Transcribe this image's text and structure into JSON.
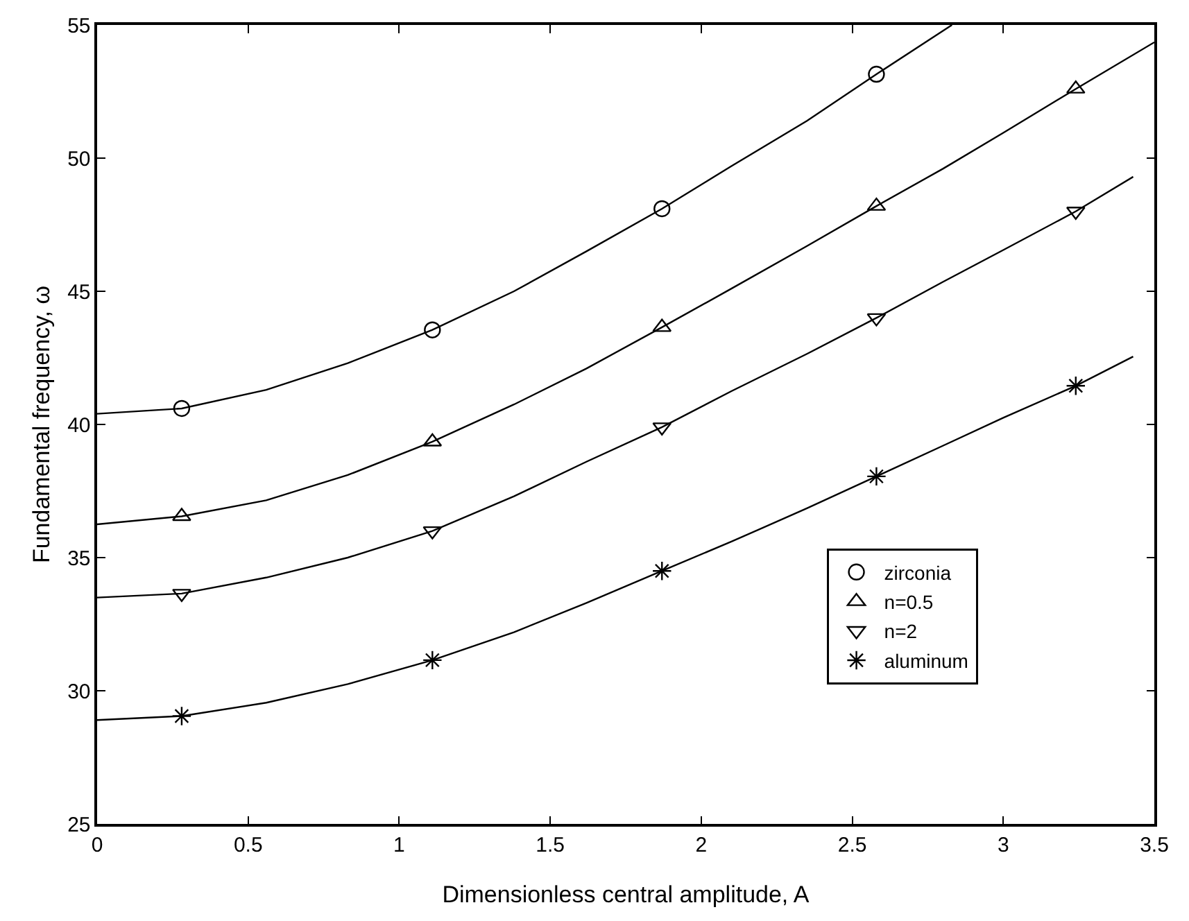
{
  "chart_data": {
    "type": "line",
    "xlabel": "Dimensionless central amplitude, A",
    "ylabel": "Fundamental frequency, ω",
    "xlim": [
      0,
      3.5
    ],
    "xticks": [
      0,
      0.5,
      1,
      1.5,
      2,
      2.5,
      3,
      3.5
    ],
    "ylim": [
      25,
      55
    ],
    "yticks": [
      25,
      30,
      35,
      40,
      45,
      50,
      55
    ],
    "legend": "right",
    "series": [
      {
        "color": "#000000",
        "marker": "none",
        "x": [
          0,
          0.28,
          0.56,
          0.83,
          1.11,
          1.38,
          1.62,
          1.87,
          2.1,
          2.35,
          2.58,
          2.83
        ],
        "values": [
          40.4,
          40.6,
          41.3,
          42.3,
          43.55,
          45.0,
          46.5,
          48.1,
          49.7,
          51.4,
          53.15,
          55
        ]
      },
      {
        "color": "#000000",
        "marker": "none",
        "x": [
          0,
          0.28,
          0.56,
          0.83,
          1.11,
          1.38,
          1.62,
          1.87,
          2.1,
          2.35,
          2.58,
          2.8,
          3.0,
          3.24,
          3.5
        ],
        "values": [
          36.25,
          36.55,
          37.15,
          38.1,
          39.35,
          40.75,
          42.1,
          43.65,
          45.1,
          46.7,
          48.2,
          49.6,
          50.95,
          52.6,
          54.35
        ]
      },
      {
        "color": "#000000",
        "marker": "none",
        "x": [
          0,
          0.28,
          0.56,
          0.83,
          1.11,
          1.38,
          1.62,
          1.87,
          2.1,
          2.35,
          2.58,
          2.8,
          3.0,
          3.24,
          3.43
        ],
        "values": [
          33.5,
          33.65,
          34.25,
          35.0,
          36.0,
          37.3,
          38.6,
          39.9,
          41.25,
          42.65,
          44.0,
          45.35,
          46.55,
          48.0,
          49.3
        ]
      },
      {
        "color": "#000000",
        "marker": "none",
        "x": [
          0,
          0.28,
          0.56,
          0.83,
          1.11,
          1.38,
          1.62,
          1.87,
          2.1,
          2.35,
          2.58,
          2.8,
          3.0,
          3.24,
          3.43
        ],
        "values": [
          28.9,
          29.05,
          29.55,
          30.25,
          31.15,
          32.2,
          33.3,
          34.5,
          35.6,
          36.85,
          38.05,
          39.2,
          40.25,
          41.45,
          42.55
        ]
      },
      {
        "type": "scatter",
        "name": "zirconia",
        "color": "#000000",
        "marker": "circle",
        "x": [
          0.28,
          1.11,
          1.87,
          2.58
        ],
        "values": [
          40.6,
          43.55,
          48.1,
          53.15
        ]
      },
      {
        "type": "scatter",
        "name": "n=0.5",
        "color": "#000000",
        "marker": "triangle",
        "x": [
          0.28,
          1.11,
          1.87,
          2.58,
          3.24
        ],
        "values": [
          36.55,
          39.35,
          43.65,
          48.2,
          52.6
        ]
      },
      {
        "type": "scatter",
        "name": "n=2",
        "color": "#000000",
        "marker": "triangle-down",
        "x": [
          0.28,
          1.11,
          1.87,
          2.58,
          3.24
        ],
        "values": [
          33.65,
          36.0,
          39.9,
          44.0,
          48.0
        ]
      },
      {
        "type": "scatter",
        "name": "aluminum",
        "color": "#000000",
        "marker": "cross",
        "x": [
          0.28,
          1.11,
          1.87,
          2.58,
          3.24
        ],
        "values": [
          29.05,
          31.15,
          34.5,
          38.05,
          41.45
        ]
      }
    ]
  }
}
